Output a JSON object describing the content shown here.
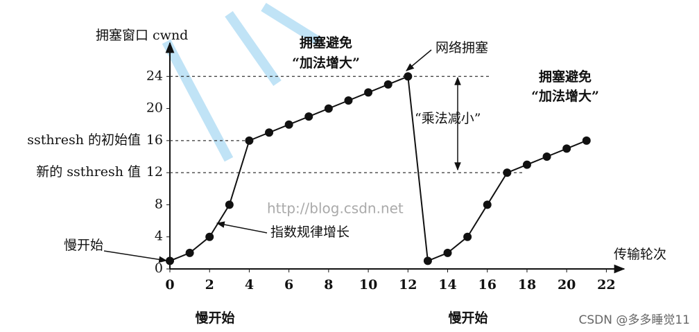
{
  "chart_data": {
    "type": "line",
    "y_label": "拥塞窗口 cwnd",
    "x_label": "传输轮次",
    "x": [
      0,
      1,
      2,
      3,
      4,
      5,
      6,
      7,
      8,
      9,
      10,
      11,
      12,
      13,
      14,
      15,
      16,
      17,
      18,
      19,
      20,
      21
    ],
    "series": [
      {
        "color": "#111111",
        "values": [
          1,
          2,
          4,
          8,
          16,
          17,
          18,
          19,
          20,
          21,
          22,
          23,
          24,
          1,
          2,
          4,
          8,
          12,
          13,
          14,
          15,
          16
        ]
      }
    ],
    "xlim": [
      0,
      23
    ],
    "ylim": [
      0,
      28
    ],
    "xticks": [
      0,
      2,
      4,
      6,
      8,
      10,
      12,
      14,
      16,
      18,
      20,
      22
    ],
    "yticks": [
      0,
      4,
      8,
      12,
      16,
      20,
      24
    ],
    "ytick_notes": [
      {
        "value": 16,
        "label": "ssthresh 的初始值"
      },
      {
        "value": 12,
        "label": "新的 ssthresh 值"
      }
    ],
    "ref_lines": [
      24,
      16,
      12
    ],
    "annotations": [
      "拥塞避免",
      "“加法增大”",
      "网络拥塞",
      "“乘法减小”",
      "拥塞避免",
      "“加法增大”",
      "指数规律增长",
      "慢开始",
      "慢开始",
      "慢开始"
    ],
    "watermarks": [
      "http://blog.csdn.net",
      "CSDN @多多睡觉11"
    ]
  }
}
